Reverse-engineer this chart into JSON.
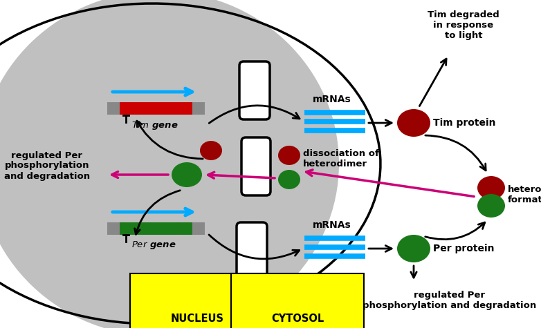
{
  "bg_color": "#c8c8c8",
  "white_bg": "#ffffff",
  "nucleus_color": "#c0c0c0",
  "tim_gene_color": "#cc0000",
  "per_gene_color": "#1a7a1a",
  "gray_ends_color": "#888888",
  "cyan_color": "#00aaff",
  "mrna_color": "#00aaff",
  "tim_protein_color": "#990000",
  "per_protein_color": "#1a7a1a",
  "arrow_color": "#000000",
  "pink_arrow_color": "#cc0077",
  "yellow_label_bg": "#ffff00",
  "nucleus_label": "NUCLEUS",
  "cytosol_label": "CYTOSOL",
  "mrnas_label": "mRNAs",
  "tim_protein_label": "Tim protein",
  "per_protein_label": "Per protein",
  "heterodimer_label": "heterodimer\nformation",
  "dissociation_label": "dissociation of\nheterodimer",
  "tim_degraded_label": "Tim degraded\nin response\nto light",
  "regulated_per_left": "regulated Per\nphosphorylation\nand degradation",
  "regulated_per_bottom": "regulated Per\nphosphorylation and degradation"
}
